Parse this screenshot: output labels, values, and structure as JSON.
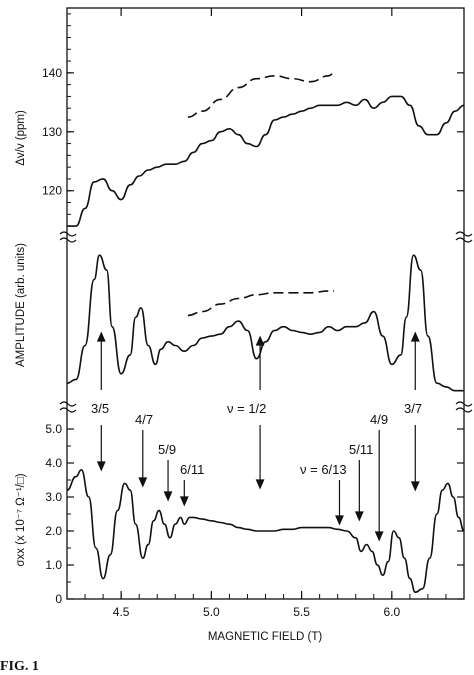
{
  "chart_data": [
    {
      "type": "line",
      "panel": "top",
      "ylabel": "Δv/v (ppm)",
      "xlim": [
        4.2,
        6.4
      ],
      "ylim": [
        113,
        151
      ],
      "yticks": [
        "120",
        "130",
        "140"
      ],
      "series": [
        {
          "style": "solid",
          "x": [
            4.2,
            4.25,
            4.3,
            4.35,
            4.4,
            4.45,
            4.5,
            4.55,
            4.6,
            4.65,
            4.7,
            4.75,
            4.8,
            4.85,
            4.9,
            4.95,
            5.0,
            5.05,
            5.1,
            5.15,
            5.2,
            5.25,
            5.3,
            5.35,
            5.4,
            5.45,
            5.5,
            5.55,
            5.6,
            5.65,
            5.7,
            5.75,
            5.8,
            5.85,
            5.9,
            5.95,
            6.0,
            6.05,
            6.1,
            6.15,
            6.2,
            6.25,
            6.3,
            6.35,
            6.4
          ],
          "y": [
            114,
            114,
            117,
            121.5,
            122,
            120,
            118.5,
            121,
            122.5,
            123.5,
            124,
            124.5,
            124.5,
            125,
            126.5,
            128,
            128.5,
            130,
            130.5,
            129.5,
            128,
            127.5,
            129.5,
            132,
            132.5,
            133,
            133.5,
            134,
            134.5,
            134.5,
            134.5,
            135,
            134.5,
            135.5,
            134,
            135,
            136,
            136,
            134.5,
            131,
            129.5,
            129.5,
            131.5,
            133.5,
            134.5
          ]
        },
        {
          "style": "dashed",
          "x": [
            4.87,
            4.95,
            5.05,
            5.15,
            5.25,
            5.35,
            5.45,
            5.55,
            5.65,
            5.68
          ],
          "y": [
            132.5,
            133.5,
            135.5,
            137.5,
            139,
            139.5,
            139,
            138.5,
            139.5,
            140
          ]
        }
      ]
    },
    {
      "type": "line",
      "panel": "middle",
      "ylabel": "AMPLITUDE (arb. units)",
      "xlim": [
        4.2,
        6.4
      ],
      "series": [
        {
          "style": "solid",
          "x": [
            4.2,
            4.25,
            4.3,
            4.35,
            4.38,
            4.42,
            4.45,
            4.5,
            4.55,
            4.58,
            4.61,
            4.65,
            4.69,
            4.72,
            4.76,
            4.8,
            4.85,
            4.9,
            4.95,
            5.0,
            5.05,
            5.1,
            5.15,
            5.2,
            5.25,
            5.3,
            5.35,
            5.4,
            5.45,
            5.5,
            5.55,
            5.6,
            5.65,
            5.7,
            5.75,
            5.8,
            5.85,
            5.9,
            5.95,
            6.0,
            6.05,
            6.08,
            6.12,
            6.16,
            6.2,
            6.25,
            6.3,
            6.35,
            6.4
          ],
          "y": [
            0.2,
            0.22,
            0.4,
            0.75,
            0.88,
            0.8,
            0.5,
            0.25,
            0.35,
            0.55,
            0.6,
            0.4,
            0.3,
            0.38,
            0.42,
            0.4,
            0.37,
            0.4,
            0.44,
            0.45,
            0.46,
            0.5,
            0.53,
            0.48,
            0.33,
            0.42,
            0.48,
            0.5,
            0.48,
            0.47,
            0.46,
            0.47,
            0.5,
            0.48,
            0.5,
            0.5,
            0.52,
            0.58,
            0.45,
            0.3,
            0.35,
            0.55,
            0.88,
            0.8,
            0.45,
            0.2,
            0.18,
            0.16,
            0.16
          ]
        },
        {
          "style": "dashed",
          "x": [
            4.87,
            4.95,
            5.05,
            5.15,
            5.25,
            5.35,
            5.45,
            5.55,
            5.65,
            5.68
          ],
          "y": [
            0.56,
            0.58,
            0.62,
            0.65,
            0.67,
            0.68,
            0.68,
            0.68,
            0.69,
            0.69
          ]
        }
      ]
    },
    {
      "type": "line",
      "panel": "bottom",
      "ylabel": "σxx (x 10⁻⁷ Ω⁻¹/□)",
      "xlabel": "MAGNETIC FIELD (T)",
      "xlim": [
        4.2,
        6.4
      ],
      "ylim": [
        0,
        5.5
      ],
      "xticks": [
        "4.5",
        "5.0",
        "5.5",
        "6.0"
      ],
      "yticks": [
        "0",
        "1.0",
        "2.0",
        "3.0",
        "4.0",
        "5.0"
      ],
      "series": [
        {
          "style": "solid",
          "x": [
            4.2,
            4.25,
            4.28,
            4.32,
            4.36,
            4.4,
            4.44,
            4.48,
            4.52,
            4.55,
            4.58,
            4.62,
            4.65,
            4.68,
            4.71,
            4.74,
            4.77,
            4.8,
            4.83,
            4.85,
            4.88,
            4.9,
            4.95,
            5.0,
            5.05,
            5.1,
            5.15,
            5.2,
            5.25,
            5.3,
            5.35,
            5.4,
            5.45,
            5.5,
            5.55,
            5.6,
            5.65,
            5.7,
            5.75,
            5.8,
            5.83,
            5.86,
            5.89,
            5.92,
            5.95,
            5.98,
            6.01,
            6.04,
            6.07,
            6.1,
            6.13,
            6.17,
            6.21,
            6.25,
            6.28,
            6.31,
            6.34,
            6.37,
            6.4
          ],
          "y": [
            3.2,
            3.6,
            3.8,
            3.0,
            1.5,
            0.6,
            1.3,
            2.6,
            3.4,
            3.2,
            2.2,
            1.2,
            1.6,
            2.3,
            2.6,
            2.2,
            1.8,
            2.2,
            2.4,
            2.2,
            2.4,
            2.4,
            2.35,
            2.3,
            2.25,
            2.2,
            2.1,
            2.05,
            2.0,
            2.0,
            2.0,
            2.05,
            2.05,
            2.1,
            2.1,
            2.1,
            2.1,
            2.05,
            2.0,
            1.8,
            1.4,
            1.6,
            1.4,
            1.0,
            0.7,
            1.1,
            2.0,
            1.8,
            1.2,
            0.6,
            0.2,
            0.3,
            1.2,
            2.5,
            3.2,
            3.4,
            3.0,
            2.4,
            2.0
          ]
        }
      ]
    }
  ],
  "annotations": {
    "nu_half": "ν = 1/2",
    "left_35": "3/5",
    "right_37": "3/7",
    "f47": "4/7",
    "f59": "5/9",
    "f611": "6/11",
    "nu_613": "ν = 6/13",
    "f511": "5/11",
    "f49": "4/9"
  },
  "caption_fragment": "FIG. 1"
}
